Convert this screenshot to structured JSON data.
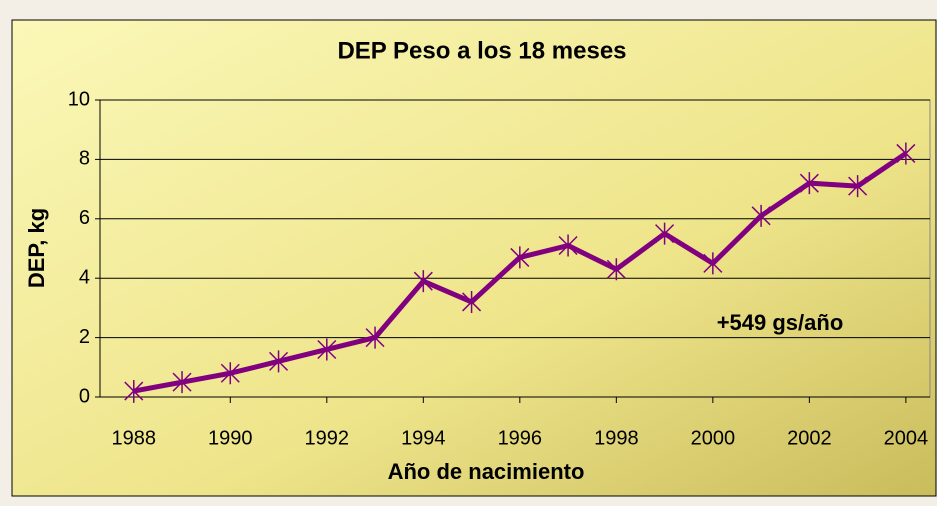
{
  "chart_data": {
    "type": "line",
    "title": "DEP Peso a los 18 meses",
    "x_label": "Año de nacimiento",
    "y_label": "DEP, kg",
    "annotation": "+549 gs/año",
    "x": [
      1988,
      1989,
      1990,
      1991,
      1992,
      1993,
      1994,
      1995,
      1996,
      1997,
      1998,
      1999,
      2000,
      2001,
      2002,
      2003,
      2004
    ],
    "series": [
      {
        "color": "#800080",
        "values": [
          0.2,
          0.5,
          0.8,
          1.2,
          1.6,
          2.0,
          3.9,
          3.2,
          4.7,
          5.1,
          4.3,
          5.5,
          4.5,
          6.1,
          7.2,
          7.1,
          8.2
        ]
      }
    ],
    "xlim": [
      1987.3,
      2004.5
    ],
    "xticks": [
      1988,
      1990,
      1992,
      1994,
      1996,
      1998,
      2000,
      2002,
      2004
    ],
    "ylim": [
      0,
      10
    ],
    "yticks": [
      0,
      2,
      4,
      6,
      8,
      10
    ],
    "grid": true
  }
}
